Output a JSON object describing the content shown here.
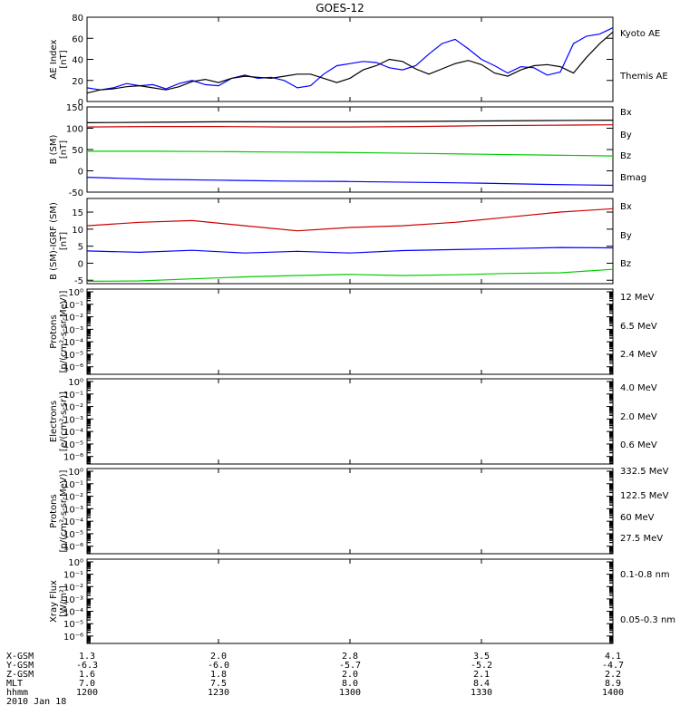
{
  "title": "GOES-12",
  "colors": {
    "black": "#000000",
    "blue": "#0000ff",
    "red": "#cc0000",
    "green": "#00cc00",
    "yellow": "#e6d800",
    "cyan": "#00aadd"
  },
  "chart_data": [
    {
      "type": "line",
      "ylabel": [
        "AE Index",
        "[nT]"
      ],
      "ylim": [
        0,
        80
      ],
      "yticks": [
        0,
        20,
        40,
        60,
        80
      ],
      "ytick_labels": [
        "0",
        "20",
        "40",
        "60",
        "80"
      ],
      "series": [
        {
          "name": "Kyoto AE",
          "color": "blue",
          "x": [
            0,
            5,
            10,
            15,
            20,
            25,
            30,
            35,
            40,
            45,
            50,
            55,
            60,
            65,
            70,
            75,
            80,
            85,
            90,
            95,
            100,
            105,
            110,
            115,
            120,
            125,
            130,
            135,
            140,
            145,
            150,
            155,
            160,
            165,
            170,
            175,
            180,
            185,
            190,
            195,
            200
          ],
          "y": [
            13,
            11,
            13,
            17,
            15,
            16,
            12,
            17,
            20,
            16,
            15,
            22,
            25,
            22,
            23,
            20,
            13,
            15,
            26,
            34,
            36,
            38,
            37,
            32,
            30,
            34,
            45,
            55,
            59,
            50,
            40,
            34,
            27,
            33,
            32,
            25,
            28,
            55,
            62,
            64,
            70
          ]
        },
        {
          "name": "Themis AE",
          "color": "black",
          "x": [
            0,
            5,
            10,
            15,
            20,
            25,
            30,
            35,
            40,
            45,
            50,
            55,
            60,
            65,
            70,
            75,
            80,
            85,
            90,
            95,
            100,
            105,
            110,
            115,
            120,
            125,
            130,
            135,
            140,
            145,
            150,
            155,
            160,
            165,
            170,
            175,
            180,
            185,
            190,
            195,
            200
          ],
          "y": [
            8,
            11,
            12,
            14,
            15,
            13,
            11,
            14,
            19,
            21,
            18,
            22,
            24,
            23,
            22,
            24,
            26,
            26,
            22,
            18,
            22,
            30,
            34,
            40,
            38,
            31,
            26,
            31,
            36,
            39,
            35,
            27,
            24,
            30,
            34,
            35,
            33,
            27,
            42,
            55,
            66
          ]
        }
      ]
    },
    {
      "type": "line",
      "ylabel": [
        "B (SM)",
        "[nT]"
      ],
      "ylim": [
        -50,
        150
      ],
      "yticks": [
        -50,
        0,
        50,
        100,
        150
      ],
      "ytick_labels": [
        "-50",
        "0",
        "50",
        "100",
        "150"
      ],
      "series": [
        {
          "name": "Bx",
          "color": "blue",
          "x": [
            0,
            25,
            50,
            75,
            100,
            125,
            150,
            175,
            200
          ],
          "y": [
            -15,
            -20,
            -22,
            -24,
            -25,
            -27,
            -29,
            -32,
            -34
          ]
        },
        {
          "name": "By",
          "color": "green",
          "x": [
            0,
            25,
            50,
            75,
            100,
            125,
            150,
            175,
            200
          ],
          "y": [
            46,
            46,
            45,
            44,
            43,
            41,
            39,
            37,
            35
          ]
        },
        {
          "name": "Bz",
          "color": "red",
          "x": [
            0,
            25,
            50,
            75,
            100,
            125,
            150,
            175,
            200
          ],
          "y": [
            103,
            104,
            104,
            103,
            103,
            104,
            106,
            107,
            108
          ]
        },
        {
          "name": "Bmag",
          "color": "black",
          "x": [
            0,
            25,
            50,
            75,
            100,
            125,
            150,
            175,
            200
          ],
          "y": [
            113,
            114,
            115,
            115,
            115,
            116,
            117,
            118,
            119
          ]
        }
      ]
    },
    {
      "type": "line",
      "ylabel": [
        "B (SM)-IGRF (SM)",
        "[nT]"
      ],
      "ylim": [
        -6,
        19
      ],
      "yticks": [
        -5,
        0,
        5,
        10,
        15
      ],
      "ytick_labels": [
        "-5",
        "0",
        "5",
        "10",
        "15"
      ],
      "series": [
        {
          "name": "Bx",
          "color": "blue",
          "x": [
            0,
            20,
            40,
            60,
            80,
            100,
            120,
            140,
            160,
            180,
            200
          ],
          "y": [
            3.6,
            3.2,
            3.8,
            3.0,
            3.5,
            3.0,
            3.7,
            4.0,
            4.3,
            4.6,
            4.5
          ]
        },
        {
          "name": "By",
          "color": "green",
          "x": [
            0,
            20,
            40,
            60,
            80,
            100,
            120,
            140,
            160,
            180,
            200
          ],
          "y": [
            -5.3,
            -5.2,
            -4.6,
            -4.0,
            -3.6,
            -3.3,
            -3.6,
            -3.4,
            -3.0,
            -2.8,
            -1.8
          ]
        },
        {
          "name": "Bz",
          "color": "red",
          "x": [
            0,
            20,
            40,
            60,
            80,
            100,
            120,
            140,
            160,
            180,
            200
          ],
          "y": [
            11,
            12,
            12.5,
            11,
            9.5,
            10.5,
            11,
            12,
            13.5,
            15,
            16
          ]
        }
      ]
    },
    {
      "type": "line",
      "ylabel": [
        "Protons",
        "[p/(cm²-s-sr-MeV)]"
      ],
      "log": true,
      "yticks": [
        -6,
        -5,
        -4,
        -3,
        -2,
        -1,
        0
      ],
      "ytick_labels": [
        "10⁻⁶",
        "10⁻⁵",
        "10⁻⁴",
        "10⁻³",
        "10⁻²",
        "10⁻¹",
        "10⁰"
      ],
      "series": [
        {
          "name": "12 MeV",
          "color": "red"
        },
        {
          "name": "6.5 MeV",
          "color": "green"
        },
        {
          "name": "2.4 MeV",
          "color": "black"
        }
      ]
    },
    {
      "type": "line",
      "ylabel": [
        "Electrons",
        "[e/(cm²-s-sr)]"
      ],
      "log": true,
      "yticks": [
        -6,
        -5,
        -4,
        -3,
        -2,
        -1,
        0
      ],
      "ytick_labels": [
        "10⁻⁶",
        "10⁻⁵",
        "10⁻⁴",
        "10⁻³",
        "10⁻²",
        "10⁻¹",
        "10⁰"
      ],
      "series": [
        {
          "name": "4.0 MeV",
          "color": "red"
        },
        {
          "name": "2.0 MeV",
          "color": "green"
        },
        {
          "name": "0.6 MeV",
          "color": "black"
        }
      ]
    },
    {
      "type": "line",
      "ylabel": [
        "Protons",
        "[p/(cm²-s-sr-MeV)]"
      ],
      "log": true,
      "yticks": [
        -6,
        -5,
        -4,
        -3,
        -2,
        -1,
        0
      ],
      "ytick_labels": [
        "10⁻⁶",
        "10⁻⁵",
        "10⁻⁴",
        "10⁻³",
        "10⁻²",
        "10⁻¹",
        "10⁰"
      ],
      "series": [
        {
          "name": "332.5 MeV",
          "color": "red"
        },
        {
          "name": "122.5 MeV",
          "color": "yellow"
        },
        {
          "name": "60 MeV",
          "color": "cyan"
        },
        {
          "name": "27.5 MeV",
          "color": "black"
        }
      ]
    },
    {
      "type": "line",
      "ylabel": [
        "Xray Flux",
        "[W/m²]"
      ],
      "log": true,
      "yticks": [
        -6,
        -5,
        -4,
        -3,
        -2,
        -1,
        0
      ],
      "ytick_labels": [
        "10⁻⁶",
        "10⁻⁵",
        "10⁻⁴",
        "10⁻³",
        "10⁻²",
        "10⁻¹",
        "10⁰"
      ],
      "series": [
        {
          "name": "0.1-0.8 nm",
          "color": "red"
        },
        {
          "name": "0.05-0.3 nm",
          "color": "blue"
        }
      ]
    }
  ],
  "xaxis": {
    "xlim": [
      0,
      200
    ],
    "ticks": [
      0,
      50,
      100,
      150,
      200
    ],
    "rows": [
      {
        "name": "X-GSM",
        "values": [
          "1.3",
          "2.0",
          "2.8",
          "3.5",
          "4.1"
        ]
      },
      {
        "name": "Y-GSM",
        "values": [
          "-6.3",
          "-6.0",
          "-5.7",
          "-5.2",
          "-4.7"
        ]
      },
      {
        "name": "Z-GSM",
        "values": [
          "1.6",
          "1.8",
          "2.0",
          "2.1",
          "2.2"
        ]
      },
      {
        "name": "MLT",
        "values": [
          "7.0",
          "7.5",
          "8.0",
          "8.4",
          "8.9"
        ]
      },
      {
        "name": "hhmm",
        "values": [
          "1200",
          "1230",
          "1300",
          "1330",
          "1400"
        ]
      }
    ],
    "date": "2010 Jan 18"
  }
}
